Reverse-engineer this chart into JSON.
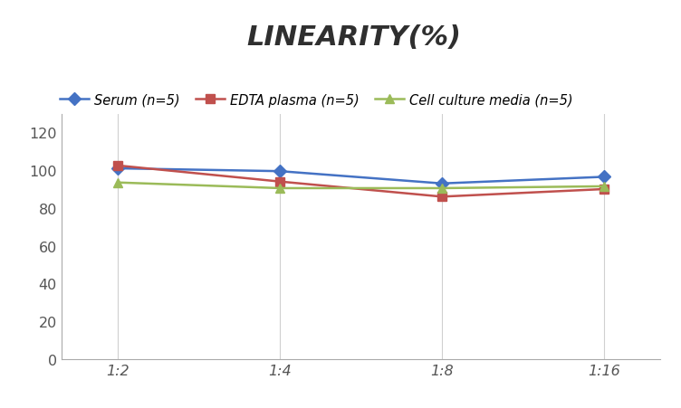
{
  "title": "LINEARITY(%)",
  "x_labels": [
    "1:2",
    "1:4",
    "1:8",
    "1:16"
  ],
  "x_positions": [
    0,
    1,
    2,
    3
  ],
  "series": [
    {
      "label": "Serum (n=5)",
      "values": [
        101,
        99.5,
        93,
        96.5
      ],
      "color": "#4472C4",
      "marker": "D",
      "linewidth": 1.8
    },
    {
      "label": "EDTA plasma (n=5)",
      "values": [
        102.5,
        94,
        86,
        90
      ],
      "color": "#C0504D",
      "marker": "s",
      "linewidth": 1.8
    },
    {
      "label": "Cell culture media (n=5)",
      "values": [
        93.5,
        90.5,
        90.5,
        91.5
      ],
      "color": "#9BBB59",
      "marker": "^",
      "linewidth": 1.8
    }
  ],
  "ylim": [
    0,
    130
  ],
  "yticks": [
    0,
    20,
    40,
    60,
    80,
    100,
    120
  ],
  "xlim": [
    -0.35,
    3.35
  ],
  "grid_color": "#D0D0D0",
  "background_color": "#FFFFFF",
  "title_fontsize": 22,
  "legend_fontsize": 10.5,
  "tick_fontsize": 11.5,
  "axis_color": "#AAAAAA"
}
